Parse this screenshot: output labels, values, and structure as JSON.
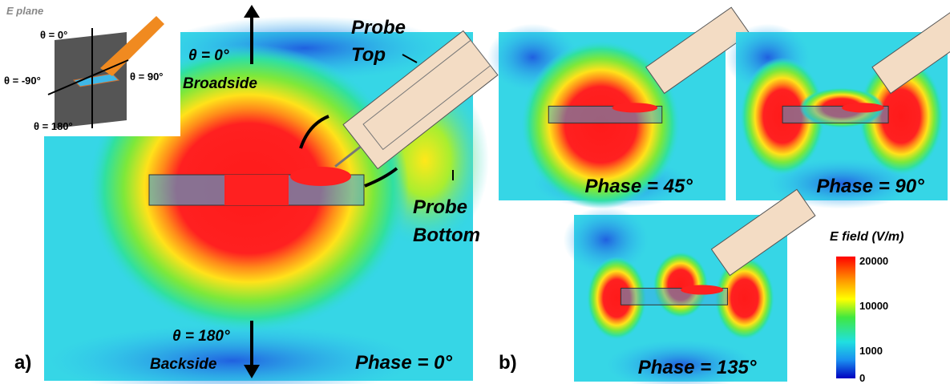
{
  "inset": {
    "title": "E plane",
    "labels": [
      "θ = 0°",
      "θ = -90°",
      "θ = 90°",
      "θ = 180°"
    ]
  },
  "panel_a": {
    "label": "a)",
    "top_angle": "θ = 0°",
    "top_name": "Broadside",
    "probe_top": [
      "Probe",
      "Top"
    ],
    "probe_bottom": [
      "Probe",
      "Bottom"
    ],
    "bottom_angle": "θ = 180°",
    "bottom_name": "Backside",
    "phase": "Phase = 0°"
  },
  "panel_b": {
    "label": "b)",
    "plots": [
      {
        "phase": "Phase = 45°"
      },
      {
        "phase": "Phase = 90°"
      },
      {
        "phase": "Phase = 135°"
      }
    ]
  },
  "colorbar": {
    "title": "E field (V/m)",
    "ticks": [
      "20000",
      "10000",
      "1000",
      "0"
    ]
  }
}
